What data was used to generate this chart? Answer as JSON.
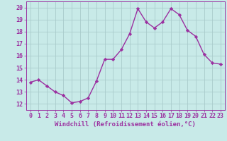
{
  "x": [
    0,
    1,
    2,
    3,
    4,
    5,
    6,
    7,
    8,
    9,
    10,
    11,
    12,
    13,
    14,
    15,
    16,
    17,
    18,
    19,
    20,
    21,
    22,
    23
  ],
  "y": [
    13.8,
    14.0,
    13.5,
    13.0,
    12.7,
    12.1,
    12.2,
    12.5,
    13.9,
    15.7,
    15.7,
    16.5,
    17.8,
    19.9,
    18.8,
    18.3,
    18.8,
    19.9,
    19.4,
    18.1,
    17.6,
    16.1,
    15.4,
    15.3
  ],
  "line_color": "#9B30A0",
  "marker": "D",
  "marker_size": 2.2,
  "bg_color": "#C8EAE8",
  "grid_color": "#AACCCC",
  "xlabel": "Windchill (Refroidissement éolien,°C)",
  "xlim": [
    -0.5,
    23.5
  ],
  "ylim": [
    11.5,
    20.5
  ],
  "xticks": [
    0,
    1,
    2,
    3,
    4,
    5,
    6,
    7,
    8,
    9,
    10,
    11,
    12,
    13,
    14,
    15,
    16,
    17,
    18,
    19,
    20,
    21,
    22,
    23
  ],
  "yticks": [
    12,
    13,
    14,
    15,
    16,
    17,
    18,
    19,
    20
  ],
  "xlabel_fontsize": 6.5,
  "tick_fontsize": 6.0,
  "line_width": 1.0
}
